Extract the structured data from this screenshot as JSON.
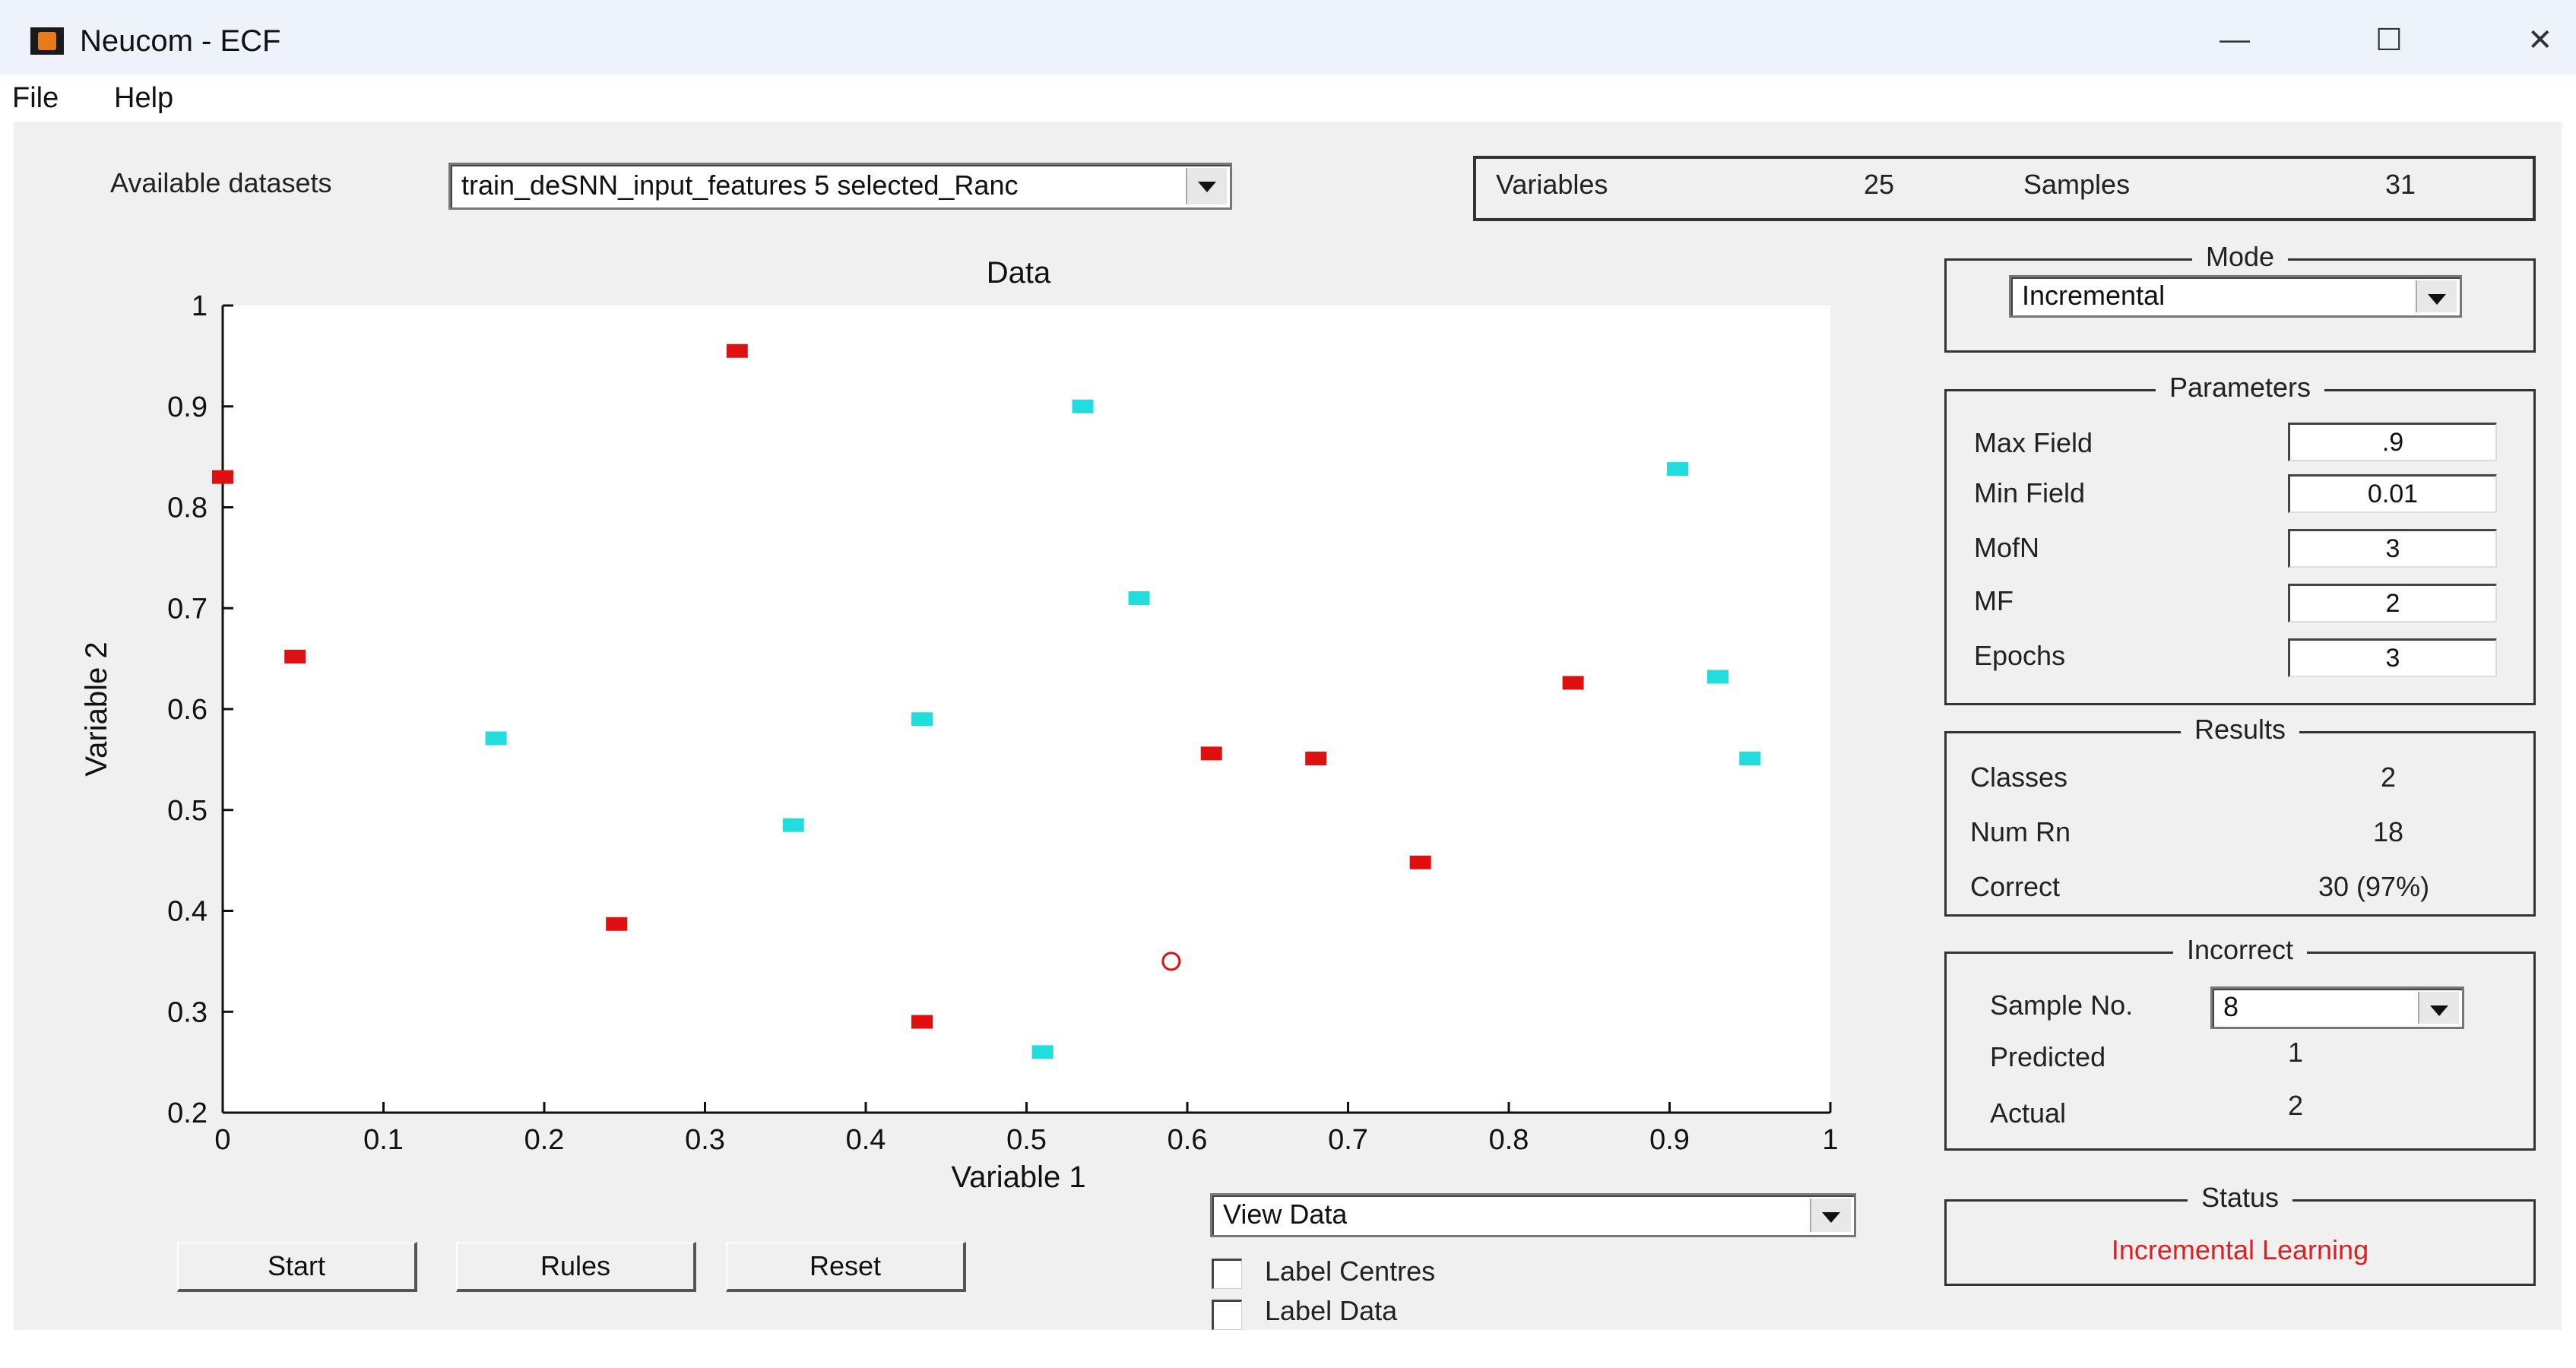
{
  "window": {
    "title": "Neucom - ECF",
    "minimize": "—",
    "maximize": "☐",
    "close": "✕"
  },
  "menu": {
    "items": [
      "File",
      "Help"
    ]
  },
  "datasets": {
    "label": "Available datasets",
    "selected": "train_deSNN_input_features 5 selected_Ranc"
  },
  "summary": {
    "variables_label": "Variables",
    "variables_value": "25",
    "samples_label": "Samples",
    "samples_value": "31"
  },
  "mode": {
    "title": "Mode",
    "selected": "Incremental"
  },
  "parameters": {
    "title": "Parameters",
    "rows": [
      {
        "label": "Max Field",
        "value": ".9"
      },
      {
        "label": "Min Field",
        "value": "0.01"
      },
      {
        "label": "MofN",
        "value": "3"
      },
      {
        "label": "MF",
        "value": "2"
      },
      {
        "label": "Epochs",
        "value": "3"
      }
    ]
  },
  "results": {
    "title": "Results",
    "rows": [
      {
        "label": "Classes",
        "value": "2"
      },
      {
        "label": "Num Rn",
        "value": "18"
      },
      {
        "label": "Correct",
        "value": "30 (97%)"
      }
    ]
  },
  "incorrect": {
    "title": "Incorrect",
    "sample_label": "Sample No.",
    "sample_value": "8",
    "predicted_label": "Predicted",
    "predicted_value": "1",
    "actual_label": "Actual",
    "actual_value": "2"
  },
  "status": {
    "title": "Status",
    "text": "Incremental Learning",
    "color": "#e02020"
  },
  "view": {
    "selected": "View Data",
    "label_centres": "Label Centres",
    "label_data": "Label Data"
  },
  "buttons": {
    "start": "Start",
    "rules": "Rules",
    "reset": "Reset"
  },
  "chart_data": {
    "type": "scatter",
    "title": "Data",
    "xlabel": "Variable 1",
    "ylabel": "Variable 2",
    "xlim": [
      0,
      1
    ],
    "ylim": [
      0.2,
      1
    ],
    "xticks": [
      "0",
      "0.1",
      "0.2",
      "0.3",
      "0.4",
      "0.5",
      "0.6",
      "0.7",
      "0.8",
      "0.9",
      "1"
    ],
    "yticks": [
      "0.2",
      "0.3",
      "0.4",
      "0.5",
      "0.6",
      "0.7",
      "0.8",
      "0.9",
      "1"
    ],
    "series": [
      {
        "color": "#e01010",
        "points": [
          [
            0.32,
            0.955
          ],
          [
            0.0,
            0.83
          ],
          [
            0.045,
            0.652
          ],
          [
            0.245,
            0.387
          ],
          [
            0.435,
            0.29
          ],
          [
            0.615,
            0.556
          ],
          [
            0.68,
            0.551
          ],
          [
            0.745,
            0.448
          ],
          [
            0.84,
            0.626
          ]
        ]
      },
      {
        "color": "#22dddd",
        "points": [
          [
            0.535,
            0.9
          ],
          [
            0.57,
            0.71
          ],
          [
            0.905,
            0.838
          ],
          [
            0.17,
            0.571
          ],
          [
            0.435,
            0.59
          ],
          [
            0.355,
            0.485
          ],
          [
            0.51,
            0.26
          ],
          [
            0.93,
            0.632
          ],
          [
            0.95,
            0.551
          ]
        ]
      }
    ],
    "highlight": {
      "point": [
        0.59,
        0.35
      ],
      "color": "#e01010",
      "shape": "circle"
    }
  }
}
